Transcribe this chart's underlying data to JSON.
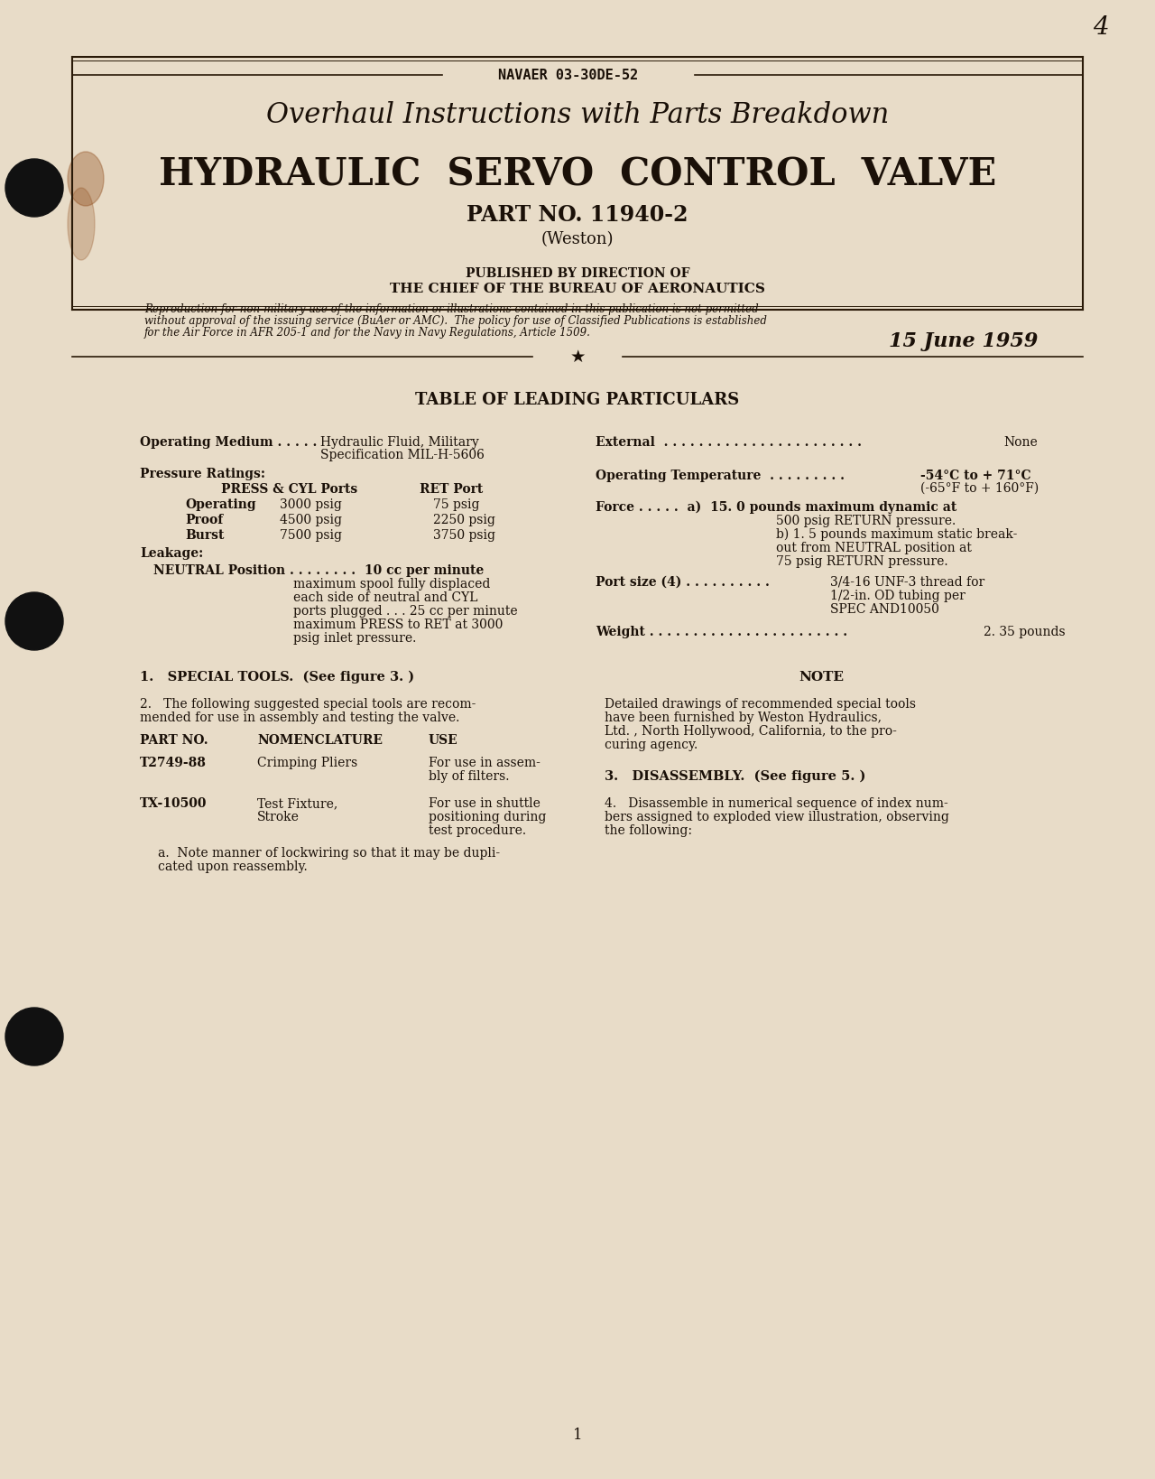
{
  "bg_color": "#d4c4a8",
  "page_bg": "#e8dcc8",
  "text_color": "#1a1008",
  "border_color": "#2a1a08",
  "header_label": "NAVAER 03-30DE-52",
  "title1": "Overhaul Instructions with Parts Breakdown",
  "title2": "HYDRAULIC  SERVO  CONTROL  VALVE",
  "part_no": "PART NO. 11940-2",
  "maker": "(Weston)",
  "pub_line1": "PUBLISHED BY DIRECTION OF",
  "pub_line2": "THE CHIEF OF THE BUREAU OF AERONAUTICS",
  "legal_line1": "Reproduction for non-military use of the information or illustrations contained in this publication is not permitted",
  "legal_line2": "without approval of the issuing service (BuAer or AMC).  The policy for use of Classified Publications is established",
  "legal_line3": "for the Air Force in AFR 205-1 and for the Navy in Navy Regulations, Article 1509.",
  "date": "15 June 1959",
  "table_header": "TABLE OF LEADING PARTICULARS",
  "page_num": "1",
  "corner_num": "4"
}
